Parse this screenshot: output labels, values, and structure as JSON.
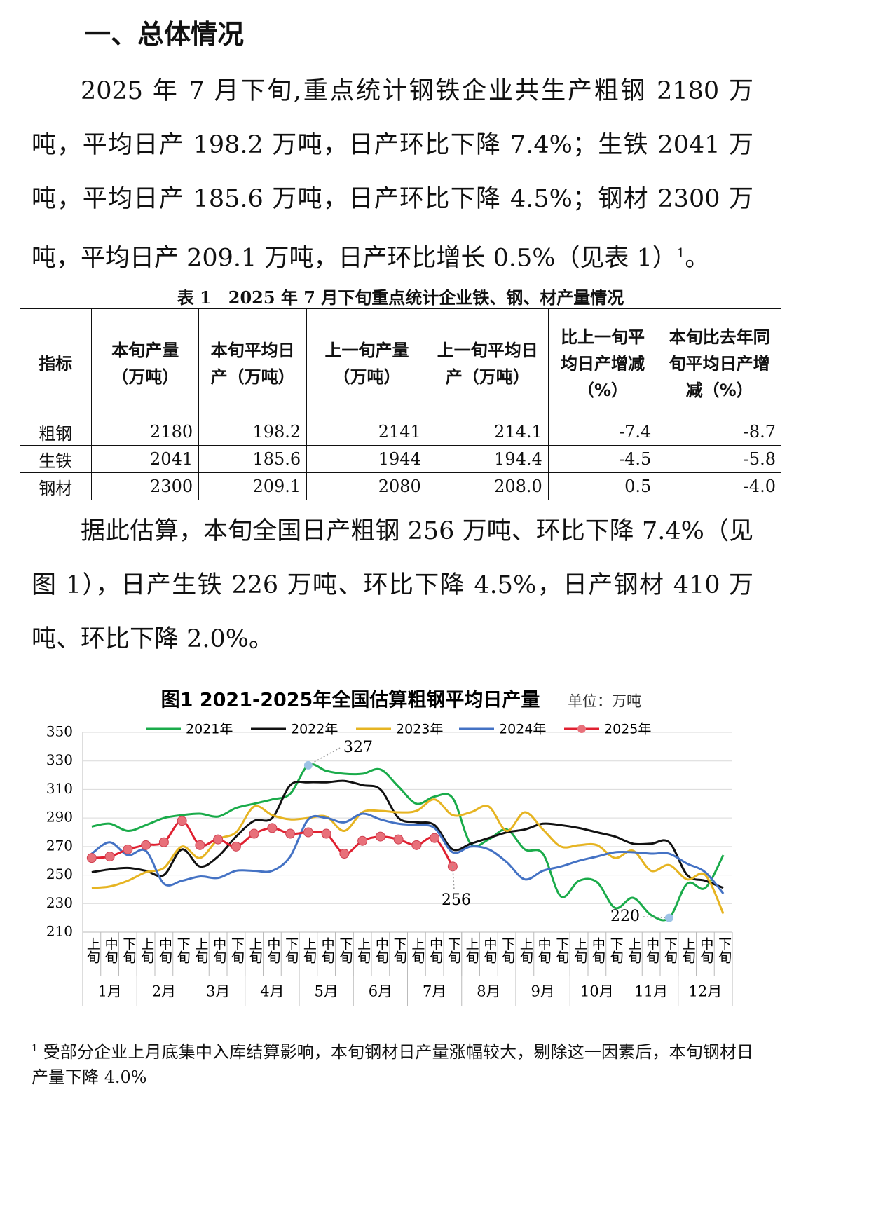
{
  "heading": "一、总体情况",
  "paragraph1": {
    "text": "2025 年 7 月下旬,重点统计钢铁企业共生产粗钢 2180 万吨，平均日产 198.2 万吨，日产环比下降 7.4%；生铁 2041 万吨，平均日产 185.6 万吨，日产环比下降 4.5%；钢材 2300 万吨，平均日产 209.1 万吨，日产环比增长 0.5%（见表 1）",
    "note_ref": "1",
    "end": "。"
  },
  "table": {
    "caption": "表 1　2025 年 7 月下旬重点统计企业铁、钢、材产量情况",
    "headers": [
      "指标",
      "本旬产量（万吨）",
      "本旬平均日产（万吨）",
      "上一旬产量（万吨）",
      "上一旬平均日产（万吨）",
      "比上一旬平均日产增减（%）",
      "本旬比去年同旬平均日产增减（%）"
    ],
    "rows": [
      [
        "粗钢",
        "2180",
        "198.2",
        "2141",
        "214.1",
        "-7.4",
        "-8.7"
      ],
      [
        "生铁",
        "2041",
        "185.6",
        "1944",
        "194.4",
        "-4.5",
        "-5.8"
      ],
      [
        "钢材",
        "2300",
        "209.1",
        "2080",
        "208.0",
        "0.5",
        "-4.0"
      ]
    ]
  },
  "paragraph2": "据此估算，本旬全国日产粗钢 256 万吨、环比下降 7.4%（见图 1），日产生铁 226 万吨、环比下降 4.5%，日产钢材 410 万吨、环比下降 2.0%。",
  "chart_data": {
    "type": "line",
    "title": "图1  2021-2025年全国估算粗钢平均日产量",
    "unit": "单位：万吨",
    "categories": [
      "上旬",
      "中旬",
      "下旬",
      "上旬",
      "中旬",
      "下旬",
      "上旬",
      "中旬",
      "下旬",
      "上旬",
      "中旬",
      "下旬",
      "上旬",
      "中旬",
      "下旬",
      "上旬",
      "中旬",
      "下旬",
      "上旬",
      "中旬",
      "下旬",
      "上旬",
      "中旬",
      "下旬",
      "上旬",
      "中旬",
      "下旬",
      "上旬",
      "中旬",
      "下旬",
      "上旬",
      "中旬",
      "下旬",
      "上旬",
      "中旬",
      "下旬"
    ],
    "groups": [
      "1月",
      "2月",
      "3月",
      "4月",
      "5月",
      "6月",
      "7月",
      "8月",
      "9月",
      "10月",
      "11月",
      "12月"
    ],
    "ylim": [
      210,
      350
    ],
    "yticks": [
      210,
      230,
      250,
      270,
      290,
      310,
      330,
      350
    ],
    "grid": true,
    "series": [
      {
        "name": "2021年",
        "color": "#1aab4a",
        "values": [
          284,
          286,
          281,
          285,
          290,
          292,
          293,
          291,
          297,
          300,
          303,
          307,
          327,
          323,
          321,
          321,
          324,
          312,
          300,
          305,
          304,
          272,
          275,
          282,
          268,
          265,
          235,
          246,
          245,
          227,
          234,
          222,
          220,
          244,
          241,
          264
        ]
      },
      {
        "name": "2022年",
        "color": "#111111",
        "values": [
          252,
          254,
          255,
          253,
          250,
          268,
          256,
          263,
          277,
          288,
          290,
          313,
          315,
          315,
          316,
          313,
          310,
          290,
          287,
          285,
          268,
          272,
          276,
          280,
          282,
          286,
          285,
          283,
          280,
          277,
          272,
          272,
          273,
          250,
          246,
          241
        ]
      },
      {
        "name": "2023年",
        "color": "#e6b422",
        "values": [
          241,
          242,
          246,
          252,
          255,
          270,
          262,
          275,
          280,
          298,
          292,
          289,
          290,
          291,
          281,
          294,
          295,
          294,
          295,
          303,
          292,
          294,
          298,
          281,
          294,
          282,
          270,
          271,
          271,
          262,
          267,
          253,
          257,
          247,
          250,
          223
        ]
      },
      {
        "name": "2024年",
        "color": "#4472c4",
        "values": [
          265,
          273,
          264,
          267,
          244,
          246,
          249,
          248,
          253,
          253,
          253,
          263,
          289,
          290,
          287,
          293,
          289,
          286,
          285,
          283,
          266,
          270,
          268,
          259,
          247,
          253,
          256,
          260,
          263,
          266,
          266,
          265,
          265,
          258,
          252,
          237
        ]
      },
      {
        "name": "2025年",
        "color": "#e02030",
        "values": [
          262,
          263,
          268,
          271,
          273,
          288,
          271,
          275,
          270,
          279,
          283,
          279,
          280,
          279,
          265,
          274,
          277,
          275,
          271,
          276,
          256,
          null,
          null,
          null,
          null,
          null,
          null,
          null,
          null,
          null,
          null,
          null,
          null,
          null,
          null,
          null
        ]
      }
    ],
    "annotations": [
      "327",
      "256",
      "220"
    ]
  },
  "footnote": {
    "ref": "1",
    "text": "受部分企业上月底集中入库结算影响，本旬钢材日产量涨幅较大，剔除这一因素后，本旬钢材日产量下降 4.0%"
  }
}
